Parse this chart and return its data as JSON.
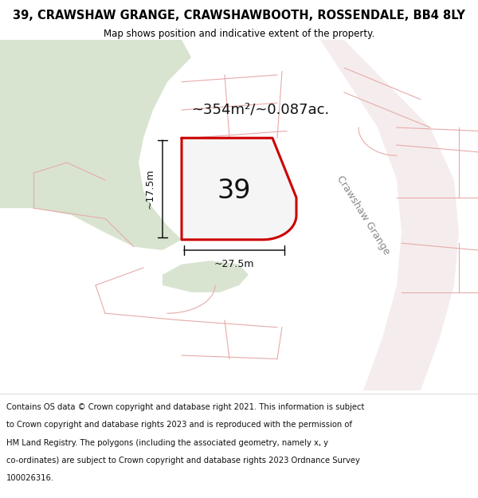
{
  "title": "39, CRAWSHAW GRANGE, CRAWSHAWBOOTH, ROSSENDALE, BB4 8LY",
  "subtitle": "Map shows position and indicative extent of the property.",
  "footer_text": "Contains OS data © Crown copyright and database right 2021. This information is subject to Crown copyright and database rights 2023 and is reproduced with the permission of HM Land Registry. The polygons (including the associated geometry, namely x, y co-ordinates) are subject to Crown copyright and database rights 2023 Ordnance Survey 100026316.",
  "bg_color": "#ffffff",
  "map_bg": "#f2f2ee",
  "green_color": "#d8e4d0",
  "road_fill": "#f5eded",
  "plot_line_color": "#cc0000",
  "plot_fill_color": "#f5f5f5",
  "pink_line_color": "#e8aaaa",
  "gray_line_color": "#cccccc",
  "street_label": "Crawshaw Grange",
  "area_label": "~354m²/~0.087ac.",
  "number_label": "39",
  "dim_width": "~27.5m",
  "dim_height": "~17.5m",
  "title_fontsize": 10.5,
  "subtitle_fontsize": 8.5,
  "area_fontsize": 13,
  "number_fontsize": 24,
  "street_fontsize": 9,
  "dim_fontsize": 9,
  "footer_fontsize": 7.2
}
